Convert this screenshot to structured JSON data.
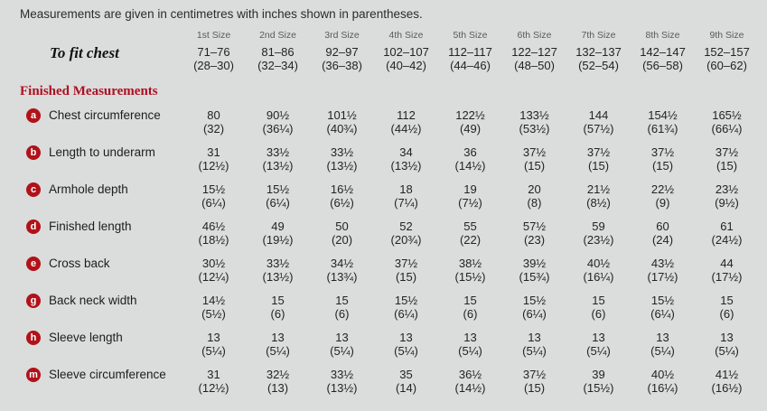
{
  "note": "Measurements are given in centimetres with inches shown in parentheses.",
  "sizes": [
    "1st Size",
    "2nd Size",
    "3rd Size",
    "4th Size",
    "5th Size",
    "6th Size",
    "7th Size",
    "8th Size",
    "9th Size"
  ],
  "to_fit_chest": {
    "label": "To fit chest",
    "cm": [
      "71–76",
      "81–86",
      "92–97",
      "102–107",
      "112–117",
      "122–127",
      "132–137",
      "142–147",
      "152–157"
    ],
    "in": [
      "(28–30)",
      "(32–34)",
      "(36–38)",
      "(40–42)",
      "(44–46)",
      "(48–50)",
      "(52–54)",
      "(56–58)",
      "(60–62)"
    ]
  },
  "section_heading": "Finished Measurements",
  "rows": [
    {
      "badge": "a",
      "label": "Chest circumference",
      "cm": [
        "80",
        "90½",
        "101½",
        "112",
        "122½",
        "133½",
        "144",
        "154½",
        "165½"
      ],
      "in": [
        "(32)",
        "(36¼)",
        "(40¾)",
        "(44½)",
        "(49)",
        "(53½)",
        "(57½)",
        "(61¾)",
        "(66¼)"
      ]
    },
    {
      "badge": "b",
      "label": "Length to underarm",
      "cm": [
        "31",
        "33½",
        "33½",
        "34",
        "36",
        "37½",
        "37½",
        "37½",
        "37½"
      ],
      "in": [
        "(12½)",
        "(13½)",
        "(13½)",
        "(13½)",
        "(14½)",
        "(15)",
        "(15)",
        "(15)",
        "(15)"
      ]
    },
    {
      "badge": "c",
      "label": "Armhole depth",
      "cm": [
        "15½",
        "15½",
        "16½",
        "18",
        "19",
        "20",
        "21½",
        "22½",
        "23½"
      ],
      "in": [
        "(6¼)",
        "(6¼)",
        "(6½)",
        "(7¼)",
        "(7½)",
        "(8)",
        "(8½)",
        "(9)",
        "(9½)"
      ]
    },
    {
      "badge": "d",
      "label": "Finished length",
      "cm": [
        "46½",
        "49",
        "50",
        "52",
        "55",
        "57½",
        "59",
        "60",
        "61"
      ],
      "in": [
        "(18½)",
        "(19½)",
        "(20)",
        "(20¾)",
        "(22)",
        "(23)",
        "(23½)",
        "(24)",
        "(24½)"
      ]
    },
    {
      "badge": "e",
      "label": "Cross back",
      "cm": [
        "30½",
        "33½",
        "34½",
        "37½",
        "38½",
        "39½",
        "40½",
        "43½",
        "44"
      ],
      "in": [
        "(12¼)",
        "(13½)",
        "(13¾)",
        "(15)",
        "(15½)",
        "(15¾)",
        "(16¼)",
        "(17½)",
        "(17½)"
      ]
    },
    {
      "badge": "g",
      "label": "Back neck width",
      "cm": [
        "14½",
        "15",
        "15",
        "15½",
        "15",
        "15½",
        "15",
        "15½",
        "15"
      ],
      "in": [
        "(5½)",
        "(6)",
        "(6)",
        "(6¼)",
        "(6)",
        "(6¼)",
        "(6)",
        "(6¼)",
        "(6)"
      ]
    },
    {
      "badge": "h",
      "label": "Sleeve length",
      "cm": [
        "13",
        "13",
        "13",
        "13",
        "13",
        "13",
        "13",
        "13",
        "13"
      ],
      "in": [
        "(5¼)",
        "(5¼)",
        "(5¼)",
        "(5¼)",
        "(5¼)",
        "(5¼)",
        "(5¼)",
        "(5¼)",
        "(5¼)"
      ]
    },
    {
      "badge": "m",
      "label": "Sleeve circumference",
      "cm": [
        "31",
        "32½",
        "33½",
        "35",
        "36½",
        "37½",
        "39",
        "40½",
        "41½"
      ],
      "in": [
        "(12½)",
        "(13)",
        "(13½)",
        "(14)",
        "(14½)",
        "(15)",
        "(15½)",
        "(16¼)",
        "(16½)"
      ]
    }
  ],
  "colors": {
    "background": "#dbdcdc",
    "accent_red": "#b11219",
    "text": "#232323",
    "muted": "#595a5c"
  }
}
